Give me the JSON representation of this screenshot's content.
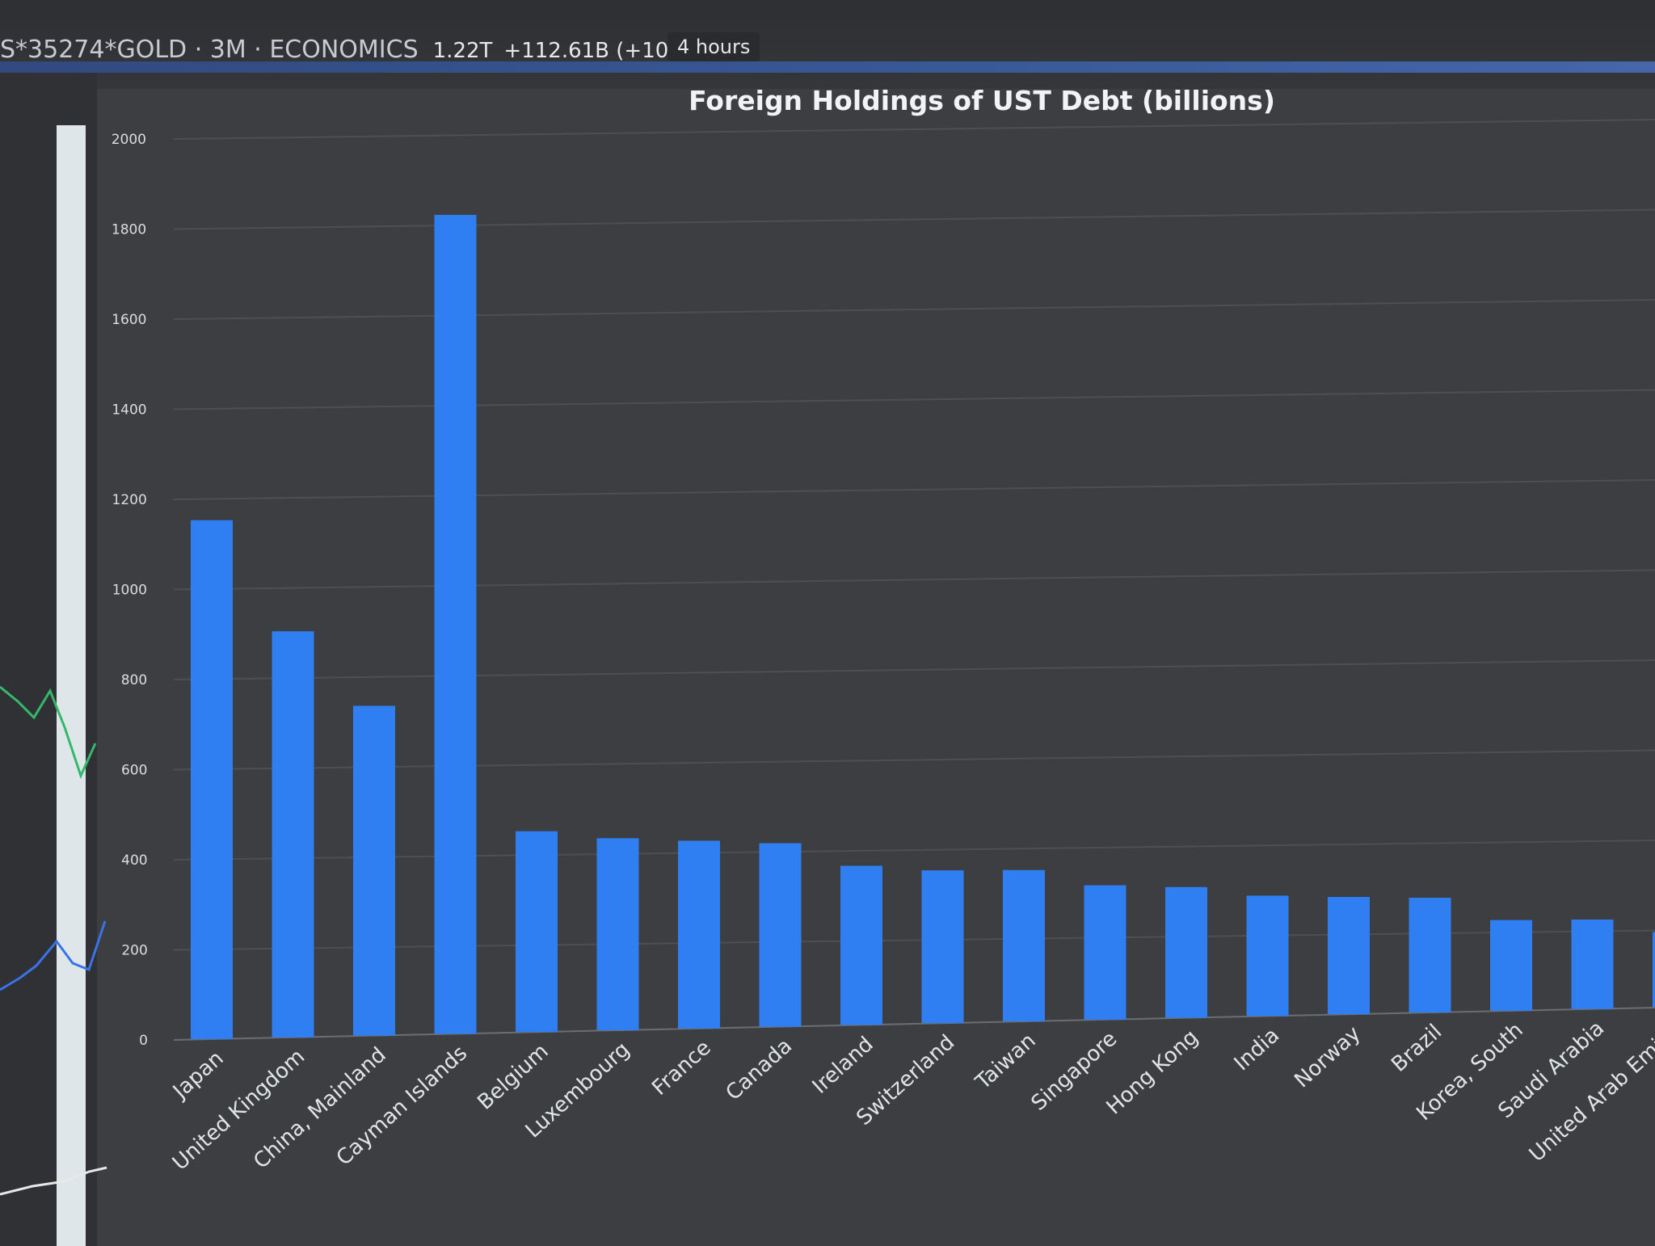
{
  "ticker": {
    "symbol": "S*35274*GOLD · 3M · ECONOMICS",
    "value": "1.22T",
    "change": "+112.61B (+10.",
    "period": "4 hours"
  },
  "chart_data": {
    "type": "bar",
    "title": "Foreign Holdings of UST Debt (billions)",
    "xlabel": "",
    "ylabel": "",
    "ylim": [
      0,
      2000
    ],
    "yticks": [
      0,
      200,
      400,
      600,
      800,
      1000,
      1200,
      1400,
      1600,
      1800,
      2000
    ],
    "grid": true,
    "bar_color": "#2f7ff2",
    "categories": [
      "Japan",
      "United Kingdom",
      "China, Mainland",
      "Cayman Islands",
      "Belgium",
      "Luxembourg",
      "France",
      "Canada",
      "Ireland",
      "Switzerland",
      "Taiwan",
      "Singapore",
      "Hong Kong",
      "India",
      "Norway",
      "Brazil",
      "Korea, South",
      "Saudi Arabia",
      "United Arab Emirat"
    ],
    "values": [
      1152,
      905,
      738,
      1840,
      453,
      435,
      427,
      419,
      365,
      352,
      350,
      312,
      305,
      282,
      276,
      271,
      215,
      213,
      180
    ]
  }
}
